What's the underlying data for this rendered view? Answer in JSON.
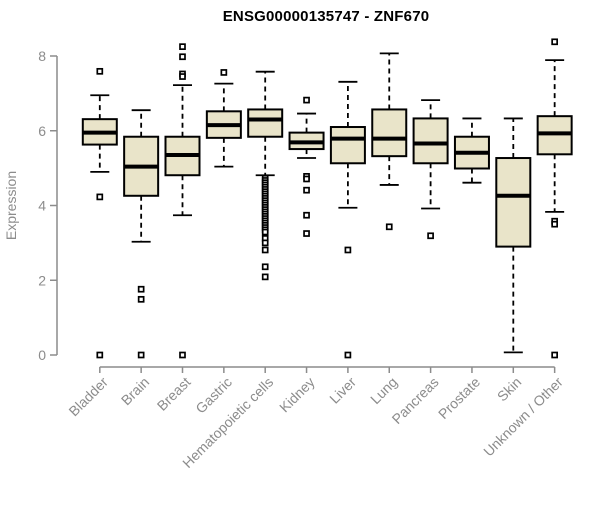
{
  "title": "ENSG00000135747 - ZNF670",
  "chart_data": {
    "type": "boxplot",
    "title": "ENSG00000135747 - ZNF670",
    "xlabel": "",
    "ylabel": "Expression",
    "ylim": [
      0,
      8.5
    ],
    "yticks": [
      0,
      2,
      4,
      6,
      8
    ],
    "grid": false,
    "legend": false,
    "categories": [
      "Bladder",
      "Brain",
      "Breast",
      "Gastric",
      "Hematopoietic cells",
      "Kidney",
      "Liver",
      "Lung",
      "Pancreas",
      "Prostate",
      "Skin",
      "Unknown / Other"
    ],
    "boxes": [
      {
        "category": "Bladder",
        "whisker_low": 4.9,
        "q1": 5.63,
        "median": 5.95,
        "q3": 6.31,
        "whisker_high": 6.95,
        "outliers": [
          7.59,
          4.23,
          0
        ]
      },
      {
        "category": "Brain",
        "whisker_low": 3.03,
        "q1": 4.26,
        "median": 5.04,
        "q3": 5.84,
        "whisker_high": 6.55,
        "outliers": [
          1.76,
          1.49,
          0
        ]
      },
      {
        "category": "Breast",
        "whisker_low": 3.74,
        "q1": 4.81,
        "median": 5.35,
        "q3": 5.84,
        "whisker_high": 7.22,
        "outliers": [
          8.25,
          7.98,
          7.52,
          7.45,
          0
        ]
      },
      {
        "category": "Gastric",
        "whisker_low": 5.04,
        "q1": 5.81,
        "median": 6.15,
        "q3": 6.52,
        "whisker_high": 7.26,
        "outliers": [
          7.56
        ]
      },
      {
        "category": "Hematopoietic cells",
        "whisker_low": 4.81,
        "q1": 5.84,
        "median": 6.3,
        "q3": 6.57,
        "whisker_high": 7.58,
        "outliers": [
          4.73,
          4.67,
          4.61,
          4.55,
          4.49,
          4.43,
          4.37,
          4.31,
          4.25,
          4.19,
          4.13,
          4.07,
          4.01,
          3.95,
          3.89,
          3.83,
          3.77,
          3.71,
          3.65,
          3.59,
          3.53,
          3.47,
          3.41,
          3.35,
          3.29,
          3.12,
          3.0,
          2.81,
          2.36,
          2.09
        ]
      },
      {
        "category": "Kidney",
        "whisker_low": 5.27,
        "q1": 5.51,
        "median": 5.69,
        "q3": 5.95,
        "whisker_high": 6.46,
        "outliers": [
          6.82,
          4.78,
          4.71,
          4.41,
          3.74,
          3.25
        ]
      },
      {
        "category": "Liver",
        "whisker_low": 3.94,
        "q1": 5.13,
        "median": 5.79,
        "q3": 6.1,
        "whisker_high": 7.31,
        "outliers": [
          2.81,
          0
        ]
      },
      {
        "category": "Lung",
        "whisker_low": 4.55,
        "q1": 5.32,
        "median": 5.79,
        "q3": 6.57,
        "whisker_high": 8.07,
        "outliers": [
          3.43
        ]
      },
      {
        "category": "Pancreas",
        "whisker_low": 3.92,
        "q1": 5.13,
        "median": 5.66,
        "q3": 6.33,
        "whisker_high": 6.82,
        "outliers": [
          3.19
        ]
      },
      {
        "category": "Prostate",
        "whisker_low": 4.61,
        "q1": 4.99,
        "median": 5.41,
        "q3": 5.84,
        "whisker_high": 6.33,
        "outliers": []
      },
      {
        "category": "Skin",
        "whisker_low": 0.07,
        "q1": 2.9,
        "median": 4.26,
        "q3": 5.27,
        "whisker_high": 6.33,
        "outliers": []
      },
      {
        "category": "Unknown / Other",
        "whisker_low": 3.83,
        "q1": 5.37,
        "median": 5.93,
        "q3": 6.39,
        "whisker_high": 7.89,
        "outliers": [
          8.38,
          3.58,
          3.5,
          0
        ]
      }
    ],
    "colors": {
      "box_fill": "#E9E4C9",
      "box_stroke": "#000000",
      "median": "#000000",
      "whisker": "#000000",
      "outlier_fill": "#FFFFFF",
      "outlier_stroke": "#000000",
      "axis": "#8C8C8C",
      "tick_label": "#8C8C8C",
      "title": "#000000",
      "background": "#FFFFFF"
    }
  }
}
